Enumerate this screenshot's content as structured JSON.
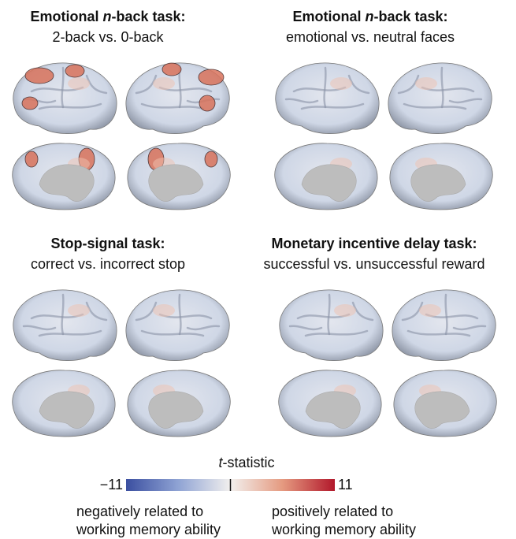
{
  "panels": [
    {
      "title": [
        "Emotional ",
        "n",
        "-back task:"
      ],
      "subtitle": "2-back vs. 0-back"
    },
    {
      "title": [
        "Emotional ",
        "n",
        "-back task:"
      ],
      "subtitle": "emotional vs. neutral faces"
    },
    {
      "title": [
        "Stop-signal task:"
      ],
      "subtitle": "correct vs. incorrect stop"
    },
    {
      "title": [
        "Monetary incentive delay task:"
      ],
      "subtitle": "successful vs. unsuccessful reward"
    }
  ],
  "colorbar": {
    "label": [
      "t",
      "-statistic"
    ],
    "min": {
      "value": -11,
      "label": "−11"
    },
    "max": 11,
    "left_note": [
      "negatively related to",
      "working memory ability"
    ],
    "right_note": [
      "positively related to",
      "working memory ability"
    ]
  }
}
